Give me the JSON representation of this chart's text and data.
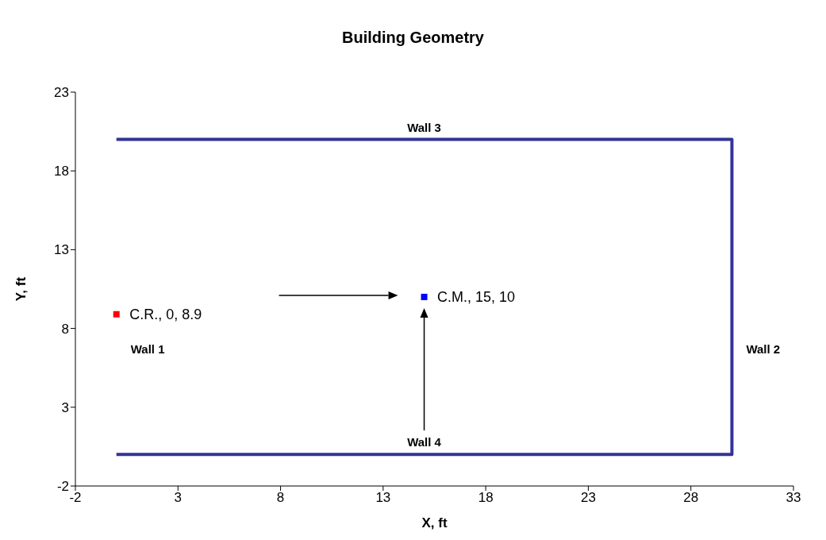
{
  "chart_data": {
    "type": "line",
    "title": "Building Geometry",
    "xlabel": "X, ft",
    "ylabel": "Y, ft",
    "xlim": [
      -2,
      33
    ],
    "ylim": [
      -2,
      23
    ],
    "xticks": [
      -2,
      3,
      8,
      13,
      18,
      23,
      28,
      33
    ],
    "yticks": [
      -2,
      3,
      8,
      13,
      18,
      23
    ],
    "marker": "none",
    "series": [
      {
        "color": "#333399",
        "x": [
          0,
          30,
          30,
          0
        ],
        "values": [
          20,
          20,
          0,
          0
        ]
      },
      {
        "type": "scatter",
        "color": "#ff0000",
        "x": [
          0
        ],
        "values": [
          8.9
        ],
        "marker": "square",
        "value_labels": [
          "C.R., 0, 8.9"
        ]
      },
      {
        "type": "scatter",
        "color": "#0000ff",
        "x": [
          15
        ],
        "values": [
          10
        ],
        "marker": "square",
        "value_labels": [
          "C.M., 15, 10"
        ]
      }
    ],
    "annotations": [
      "Wall 1",
      "Wall 2",
      "Wall 3",
      "Wall 4"
    ]
  }
}
